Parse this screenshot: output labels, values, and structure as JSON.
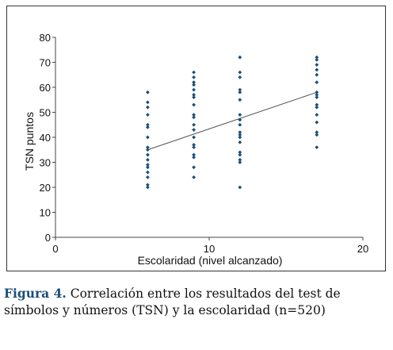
{
  "chart_data": {
    "type": "scatter",
    "title": "",
    "xlabel": "Escolaridad (nivel alcanzado)",
    "ylabel": "TSN puntos",
    "xlim": [
      0,
      20
    ],
    "ylim": [
      0,
      80
    ],
    "xticks": [
      0,
      10,
      20
    ],
    "yticks": [
      0,
      10,
      20,
      30,
      40,
      50,
      60,
      70,
      80
    ],
    "grid": false,
    "point_color": "#1a4f7a",
    "line_color": "#555555",
    "points": [
      {
        "x": 6,
        "y": 20
      },
      {
        "x": 6,
        "y": 21
      },
      {
        "x": 6,
        "y": 24
      },
      {
        "x": 6,
        "y": 26
      },
      {
        "x": 6,
        "y": 28
      },
      {
        "x": 6,
        "y": 29
      },
      {
        "x": 6,
        "y": 31
      },
      {
        "x": 6,
        "y": 33
      },
      {
        "x": 6,
        "y": 35
      },
      {
        "x": 6,
        "y": 36
      },
      {
        "x": 6,
        "y": 40
      },
      {
        "x": 6,
        "y": 44
      },
      {
        "x": 6,
        "y": 45
      },
      {
        "x": 6,
        "y": 49
      },
      {
        "x": 6,
        "y": 52
      },
      {
        "x": 6,
        "y": 54
      },
      {
        "x": 6,
        "y": 58
      },
      {
        "x": 9,
        "y": 24
      },
      {
        "x": 9,
        "y": 28
      },
      {
        "x": 9,
        "y": 32
      },
      {
        "x": 9,
        "y": 33
      },
      {
        "x": 9,
        "y": 36
      },
      {
        "x": 9,
        "y": 37
      },
      {
        "x": 9,
        "y": 40
      },
      {
        "x": 9,
        "y": 43
      },
      {
        "x": 9,
        "y": 45
      },
      {
        "x": 9,
        "y": 48
      },
      {
        "x": 9,
        "y": 49
      },
      {
        "x": 9,
        "y": 53
      },
      {
        "x": 9,
        "y": 56
      },
      {
        "x": 9,
        "y": 57
      },
      {
        "x": 9,
        "y": 59
      },
      {
        "x": 9,
        "y": 61
      },
      {
        "x": 9,
        "y": 62
      },
      {
        "x": 9,
        "y": 64
      },
      {
        "x": 9,
        "y": 66
      },
      {
        "x": 12,
        "y": 20
      },
      {
        "x": 12,
        "y": 30
      },
      {
        "x": 12,
        "y": 31
      },
      {
        "x": 12,
        "y": 33
      },
      {
        "x": 12,
        "y": 34
      },
      {
        "x": 12,
        "y": 38
      },
      {
        "x": 12,
        "y": 40
      },
      {
        "x": 12,
        "y": 41
      },
      {
        "x": 12,
        "y": 42
      },
      {
        "x": 12,
        "y": 45
      },
      {
        "x": 12,
        "y": 47
      },
      {
        "x": 12,
        "y": 49
      },
      {
        "x": 12,
        "y": 55
      },
      {
        "x": 12,
        "y": 58
      },
      {
        "x": 12,
        "y": 59
      },
      {
        "x": 12,
        "y": 64
      },
      {
        "x": 12,
        "y": 66
      },
      {
        "x": 12,
        "y": 72
      },
      {
        "x": 17,
        "y": 36
      },
      {
        "x": 17,
        "y": 41
      },
      {
        "x": 17,
        "y": 42
      },
      {
        "x": 17,
        "y": 46
      },
      {
        "x": 17,
        "y": 49
      },
      {
        "x": 17,
        "y": 52
      },
      {
        "x": 17,
        "y": 53
      },
      {
        "x": 17,
        "y": 56
      },
      {
        "x": 17,
        "y": 57
      },
      {
        "x": 17,
        "y": 58
      },
      {
        "x": 17,
        "y": 62
      },
      {
        "x": 17,
        "y": 65
      },
      {
        "x": 17,
        "y": 67
      },
      {
        "x": 17,
        "y": 69
      },
      {
        "x": 17,
        "y": 71
      },
      {
        "x": 17,
        "y": 72
      }
    ],
    "trendline": {
      "x": [
        6,
        17
      ],
      "y": [
        35,
        58
      ]
    }
  },
  "caption": {
    "label": "Figura 4.",
    "text": "Correlación entre los resultados del test de símbolos y números (TSN) y la escolaridad (n=520)"
  }
}
